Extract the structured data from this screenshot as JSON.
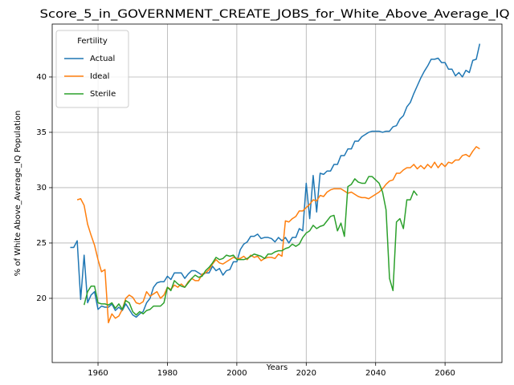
{
  "chart_data": {
    "type": "line",
    "title": "Score_5_in_GOVERNMENT_CREATE_JOBS_for_White_Above_Average_IQ",
    "x_label": "Years",
    "y_label": "% of White Above_Average_IQ Population",
    "legend_title": "Fertility",
    "legend_position": "upper left",
    "grid": true,
    "xlim": [
      1946.8,
      2076.4
    ],
    "ylim": [
      14.2,
      44.78
    ],
    "xticks": [
      1960,
      1980,
      2000,
      2020,
      2040,
      2060
    ],
    "yticks": [
      20,
      25,
      30,
      35,
      40
    ],
    "x": [
      1952,
      1953,
      1954,
      1955,
      1956,
      1957,
      1958,
      1959,
      1960,
      1961,
      1962,
      1963,
      1964,
      1965,
      1966,
      1967,
      1968,
      1969,
      1970,
      1971,
      1972,
      1973,
      1974,
      1975,
      1976,
      1977,
      1978,
      1979,
      1980,
      1981,
      1982,
      1983,
      1984,
      1985,
      1986,
      1987,
      1988,
      1989,
      1990,
      1991,
      1992,
      1993,
      1994,
      1995,
      1996,
      1997,
      1998,
      1999,
      2000,
      2001,
      2002,
      2003,
      2004,
      2005,
      2006,
      2007,
      2008,
      2009,
      2010,
      2011,
      2012,
      2013,
      2014,
      2015,
      2016,
      2017,
      2018,
      2019,
      2020,
      2021,
      2022,
      2023,
      2024,
      2025,
      2026,
      2027,
      2028,
      2029,
      2030,
      2031,
      2032,
      2033,
      2034,
      2035,
      2036,
      2037,
      2038,
      2039,
      2040,
      2041,
      2042,
      2043,
      2044,
      2045,
      2046,
      2047,
      2048,
      2049,
      2050,
      2051,
      2052,
      2053,
      2054,
      2055,
      2056,
      2057,
      2058,
      2059,
      2060,
      2061,
      2062,
      2063,
      2064,
      2065,
      2066,
      2067,
      2068,
      2069,
      2070
    ],
    "series": [
      {
        "name": "Actual",
        "color": "#1f77b4",
        "values": [
          24.6,
          24.6,
          25.2,
          19.9,
          23.9,
          19.6,
          20.3,
          20.6,
          19.0,
          19.3,
          19.2,
          19.2,
          19.5,
          18.9,
          19.2,
          18.9,
          19.5,
          19.0,
          18.5,
          18.3,
          18.6,
          18.8,
          19.6,
          20.0,
          21.0,
          21.4,
          21.5,
          21.5,
          22.0,
          21.7,
          22.3,
          22.3,
          22.3,
          21.8,
          22.2,
          22.5,
          22.5,
          22.3,
          22.1,
          22.3,
          22.3,
          22.9,
          22.5,
          22.7,
          22.1,
          22.5,
          22.6,
          23.3,
          23.3,
          24.4,
          24.9,
          25.1,
          25.6,
          25.6,
          25.8,
          25.4,
          25.5,
          25.5,
          25.4,
          25.1,
          25.5,
          25.2,
          25.5,
          25.0,
          25.5,
          25.5,
          26.3,
          26.1,
          30.4,
          27.2,
          31.1,
          27.8,
          31.3,
          31.2,
          31.5,
          31.5,
          32.1,
          32.1,
          32.9,
          32.9,
          33.5,
          33.5,
          34.2,
          34.2,
          34.6,
          34.8,
          35.0,
          35.1,
          35.1,
          35.1,
          35.0,
          35.1,
          35.1,
          35.5,
          35.6,
          36.2,
          36.5,
          37.3,
          37.7,
          38.5,
          39.2,
          39.9,
          40.5,
          41.0,
          41.6,
          41.6,
          41.7,
          41.3,
          41.3,
          40.7,
          40.7,
          40.1,
          40.4,
          40.0,
          40.6,
          40.4,
          41.5,
          41.6,
          43.0
        ]
      },
      {
        "name": "Ideal",
        "color": "#ff7f0e",
        "values": [
          null,
          null,
          28.9,
          29.0,
          28.4,
          26.7,
          25.7,
          24.8,
          23.5,
          22.4,
          22.6,
          17.8,
          18.6,
          18.2,
          18.4,
          19.0,
          20.0,
          20.3,
          20.1,
          19.6,
          19.5,
          19.7,
          20.6,
          20.2,
          20.4,
          20.6,
          20.0,
          20.3,
          21.0,
          20.8,
          21.2,
          21.0,
          21.3,
          21.0,
          21.5,
          21.8,
          21.6,
          21.6,
          22.2,
          22.3,
          22.6,
          23.1,
          23.5,
          23.2,
          23.1,
          23.3,
          23.5,
          23.7,
          23.6,
          23.6,
          23.8,
          23.5,
          23.9,
          23.7,
          23.8,
          23.4,
          23.6,
          23.7,
          23.7,
          23.6,
          24.0,
          23.8,
          27.0,
          26.9,
          27.2,
          27.4,
          27.9,
          27.9,
          28.2,
          28.5,
          28.9,
          28.8,
          29.3,
          29.2,
          29.6,
          29.8,
          29.9,
          29.9,
          29.9,
          29.7,
          29.5,
          29.6,
          29.4,
          29.2,
          29.1,
          29.1,
          29.0,
          29.2,
          29.4,
          29.6,
          29.9,
          30.3,
          30.6,
          30.7,
          31.3,
          31.3,
          31.6,
          31.8,
          31.8,
          32.1,
          31.7,
          32.0,
          31.7,
          32.1,
          31.8,
          32.3,
          31.8,
          32.2,
          31.9,
          32.3,
          32.2,
          32.5,
          32.5,
          32.9,
          33.0,
          32.8,
          33.3,
          33.7,
          33.5
        ]
      },
      {
        "name": "Sterile",
        "color": "#2ca02c",
        "values": [
          null,
          null,
          null,
          null,
          19.4,
          20.6,
          21.1,
          21.1,
          19.6,
          19.5,
          19.5,
          19.4,
          19.6,
          19.1,
          19.5,
          19.0,
          19.8,
          19.6,
          18.8,
          18.5,
          18.8,
          18.6,
          18.9,
          19.0,
          19.3,
          19.3,
          19.3,
          19.6,
          21.0,
          20.7,
          21.6,
          21.3,
          21.1,
          21.0,
          21.4,
          21.8,
          22.1,
          21.9,
          22.0,
          22.5,
          22.8,
          23.2,
          23.7,
          23.5,
          23.6,
          23.9,
          23.8,
          23.9,
          23.5,
          23.5,
          23.5,
          23.6,
          23.8,
          24.0,
          23.9,
          23.8,
          23.6,
          24.0,
          24.0,
          24.2,
          24.3,
          24.3,
          24.5,
          24.6,
          24.9,
          24.7,
          24.9,
          25.5,
          25.9,
          26.1,
          26.6,
          26.3,
          26.5,
          26.6,
          27.0,
          27.4,
          27.5,
          26.1,
          26.8,
          25.6,
          30.1,
          30.3,
          30.8,
          30.5,
          30.4,
          30.4,
          31.0,
          31.0,
          30.7,
          30.4,
          29.6,
          28.0,
          21.8,
          20.7,
          26.9,
          27.2,
          26.3,
          28.9,
          28.9,
          29.7,
          29.3,
          null,
          null,
          null,
          null,
          null,
          null,
          null,
          null,
          null,
          null,
          null,
          null,
          null,
          null,
          null,
          null,
          null,
          null
        ]
      }
    ]
  }
}
